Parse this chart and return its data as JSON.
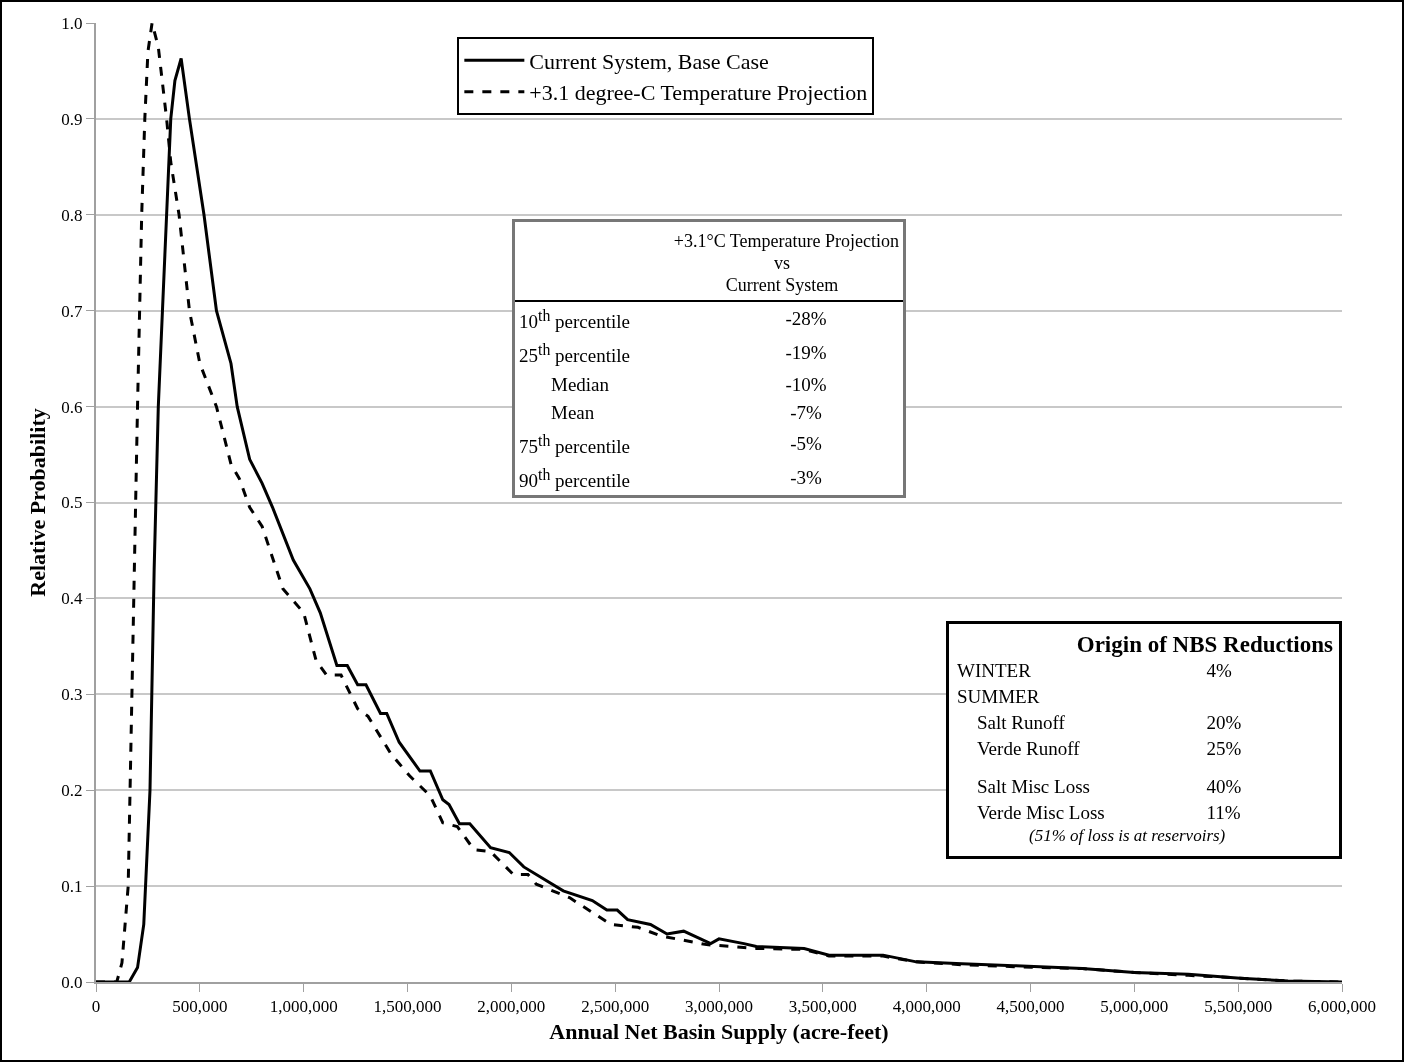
{
  "chart_data": {
    "type": "line",
    "xlabel": "Annual Net Basin Supply (acre-feet)",
    "ylabel": "Relative Probability",
    "xlim": [
      0,
      6000000
    ],
    "ylim": [
      0,
      1
    ],
    "xticks": [
      0,
      {
        "value": 500000,
        "label": "500,000"
      },
      {
        "value": 1000000,
        "label": "1,000,000"
      },
      {
        "value": 1500000,
        "label": "1,500,000"
      },
      {
        "value": 2000000,
        "label": "2,000,000"
      },
      {
        "value": 2500000,
        "label": "2,500,000"
      },
      {
        "value": 3000000,
        "label": "3,000,000"
      },
      {
        "value": 3500000,
        "label": "3,500,000"
      },
      {
        "value": 4000000,
        "label": "4,000,000"
      },
      {
        "value": 4500000,
        "label": "4,500,000"
      },
      {
        "value": 5000000,
        "label": "5,000,000"
      },
      {
        "value": 5500000,
        "label": "5,500,000"
      },
      {
        "value": 6000000,
        "label": "6,000,000"
      }
    ],
    "yticks": [
      {
        "value": 0,
        "label": "0.0"
      },
      0.1,
      0.2,
      0.3,
      0.4,
      0.5,
      0.6,
      0.7,
      0.8,
      0.9,
      {
        "value": 1,
        "label": "1.0"
      }
    ],
    "grid": "y",
    "legend": "top",
    "marker": "none",
    "series": [
      {
        "name": "Current System, Base Case",
        "color": "#000000",
        "line_style": "solid",
        "x": [
          0,
          160000,
          200000,
          230000,
          260000,
          280000,
          300000,
          320000,
          340000,
          360000,
          380000,
          410000,
          450000,
          520000,
          580000,
          650000,
          680000,
          740000,
          800000,
          850000,
          950000,
          1030000,
          1080000,
          1160000,
          1210000,
          1260000,
          1300000,
          1370000,
          1400000,
          1460000,
          1560000,
          1610000,
          1670000,
          1700000,
          1750000,
          1800000,
          1900000,
          1990000,
          2060000,
          2250000,
          2390000,
          2460000,
          2510000,
          2560000,
          2670000,
          2750000,
          2830000,
          2960000,
          3000000,
          3120000,
          3180000,
          3410000,
          3530000,
          3790000,
          3950000,
          4170000,
          4420000,
          4750000,
          5000000,
          5260000,
          5510000,
          5740000,
          6000000
        ],
        "values": [
          0,
          0,
          0.015,
          0.06,
          0.2,
          0.43,
          0.6,
          0.7,
          0.8,
          0.9,
          0.94,
          0.963,
          0.9,
          0.8,
          0.7,
          0.645,
          0.6,
          0.545,
          0.52,
          0.495,
          0.44,
          0.41,
          0.385,
          0.33,
          0.33,
          0.31,
          0.31,
          0.28,
          0.28,
          0.25,
          0.22,
          0.22,
          0.19,
          0.185,
          0.165,
          0.165,
          0.14,
          0.135,
          0.12,
          0.095,
          0.085,
          0.075,
          0.075,
          0.065,
          0.06,
          0.05,
          0.053,
          0.04,
          0.045,
          0.04,
          0.037,
          0.035,
          0.028,
          0.028,
          0.021,
          0.019,
          0.017,
          0.014,
          0.01,
          0.008,
          0.004,
          0.001,
          0
        ]
      },
      {
        "name": "+3.1 degree-C Temperature Projection",
        "color": "#000000",
        "line_style": "dashed",
        "x": [
          0,
          100000,
          125000,
          155000,
          190000,
          200000,
          210000,
          220000,
          235000,
          250000,
          270000,
          300000,
          340000,
          360000,
          400000,
          450000,
          500000,
          580000,
          650000,
          690000,
          740000,
          800000,
          900000,
          1000000,
          1060000,
          1110000,
          1180000,
          1260000,
          1310000,
          1420000,
          1510000,
          1610000,
          1670000,
          1740000,
          1820000,
          1900000,
          2010000,
          2080000,
          2120000,
          2280000,
          2480000,
          2610000,
          2720000,
          2940000,
          3120000,
          3180000,
          3410000,
          3530000,
          3790000,
          3950000,
          4170000,
          4420000,
          4750000,
          5000000,
          5260000,
          5510000,
          5740000,
          6000000
        ],
        "values": [
          0,
          0,
          0.02,
          0.1,
          0.49,
          0.6,
          0.7,
          0.8,
          0.9,
          0.97,
          1,
          0.975,
          0.9,
          0.855,
          0.8,
          0.7,
          0.645,
          0.6,
          0.54,
          0.525,
          0.495,
          0.475,
          0.41,
          0.385,
          0.335,
          0.32,
          0.32,
          0.285,
          0.277,
          0.238,
          0.215,
          0.194,
          0.166,
          0.162,
          0.138,
          0.136,
          0.112,
          0.112,
          0.102,
          0.088,
          0.06,
          0.057,
          0.048,
          0.039,
          0.036,
          0.035,
          0.034,
          0.027,
          0.027,
          0.021,
          0.018,
          0.016,
          0.014,
          0.01,
          0.007,
          0.004,
          0.001,
          0
        ]
      }
    ],
    "annotations": [
      "+3.1°C Temperature Projection",
      "vs",
      "Current System",
      "10$^{th}$ percentile",
      "-28%",
      "25$^{th}$ percentile",
      "-19%",
      "Median",
      "-10%",
      "Mean",
      "-7%",
      "75$^{th}$ percentile",
      "-5%",
      "90$^{th}$ percentile",
      "-3%",
      "Origin of NBS Reductions",
      "WINTER",
      "4%",
      "SUMMER",
      "Salt Runoff",
      "20%",
      "Verde Runoff",
      "25%",
      "Salt Misc Loss",
      "40%",
      "Verde Misc Loss",
      "11%",
      "(51% of loss is at reservoirs)"
    ]
  }
}
